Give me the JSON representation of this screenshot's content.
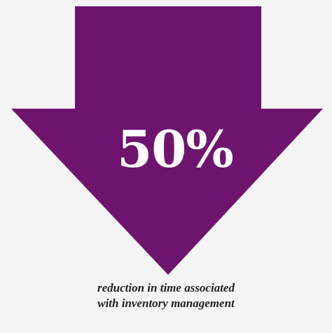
{
  "stat": {
    "value": "50%",
    "caption_line1": "reduction in time associated",
    "caption_line2": "with inventory management"
  },
  "colors": {
    "arrow": "#6f146e",
    "background": "#f5f5f5",
    "value_text": "#ffffff",
    "caption_text": "#222222"
  },
  "icons": {
    "arrow": "down-arrow-icon"
  }
}
